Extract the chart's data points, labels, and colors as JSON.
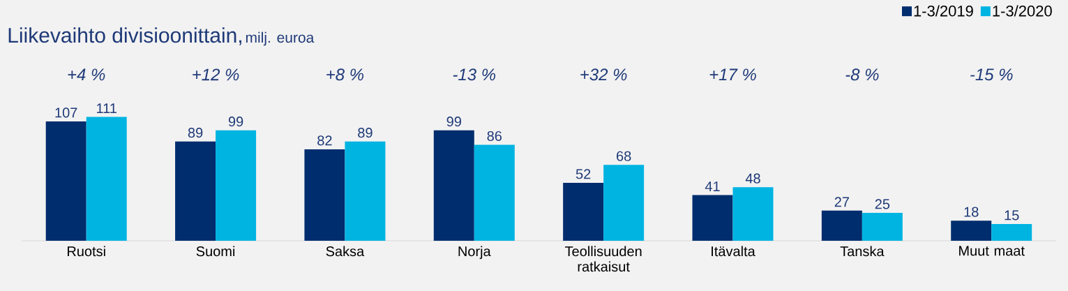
{
  "chart_data": {
    "type": "bar",
    "title": "Liikevaihto divisioonittain,",
    "subtitle": "milj. euroa",
    "categories": [
      "Ruotsi",
      "Suomi",
      "Saksa",
      "Norja",
      "Teollisuuden ratkaisut",
      "Itävalta",
      "Tanska",
      "Muut maat"
    ],
    "series": [
      {
        "name": "1-3/2019",
        "color": "#002d6e",
        "values": [
          107,
          89,
          82,
          99,
          52,
          41,
          27,
          18
        ]
      },
      {
        "name": "1-3/2020",
        "color": "#00b4e2",
        "values": [
          111,
          99,
          89,
          86,
          68,
          48,
          25,
          15
        ]
      }
    ],
    "data_labels": true,
    "tick_labels": "x",
    "legend": "top right",
    "annotations": [
      "+4 %",
      "+12 %",
      "+8 %",
      "-13 %",
      "+32 %",
      "+17 %",
      "-8 %",
      "-15 %"
    ]
  }
}
